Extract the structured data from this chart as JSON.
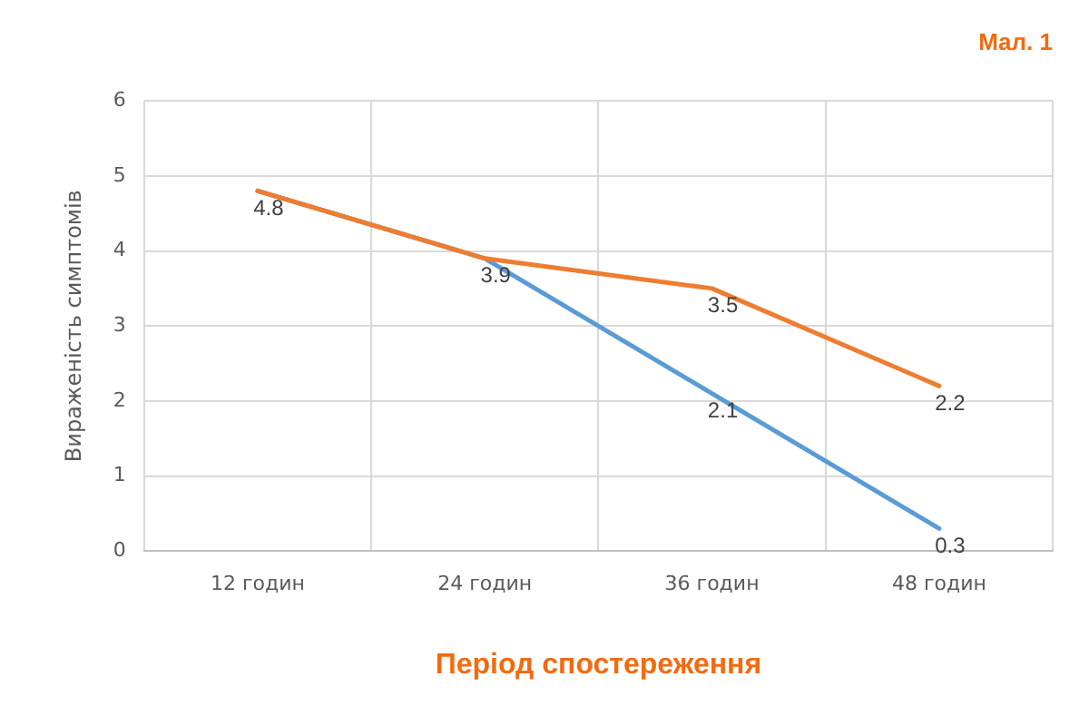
{
  "chart_data": {
    "type": "line",
    "title": "Мал. 1",
    "xlabel": "Період спостереження",
    "ylabel": "Вираженість симптомів",
    "categories": [
      "12 годин",
      "24 годин",
      "36 годин",
      "48 годин"
    ],
    "series": [
      {
        "color": "#ed7d31",
        "values": [
          4.8,
          3.9,
          3.5,
          2.2
        ],
        "value_labels": [
          null,
          null,
          "3.5",
          "2.2"
        ]
      },
      {
        "color": "#5b9bd5",
        "values": [
          4.8,
          3.9,
          2.1,
          0.3
        ],
        "value_labels": [
          "4.8",
          "3.9",
          "2.1",
          "0.3"
        ]
      }
    ],
    "ylim": [
      0,
      6
    ],
    "yticks": [
      0,
      1,
      2,
      3,
      4,
      5,
      6
    ],
    "grid": true,
    "legend": false,
    "marker": "none",
    "line_style": "solid"
  }
}
